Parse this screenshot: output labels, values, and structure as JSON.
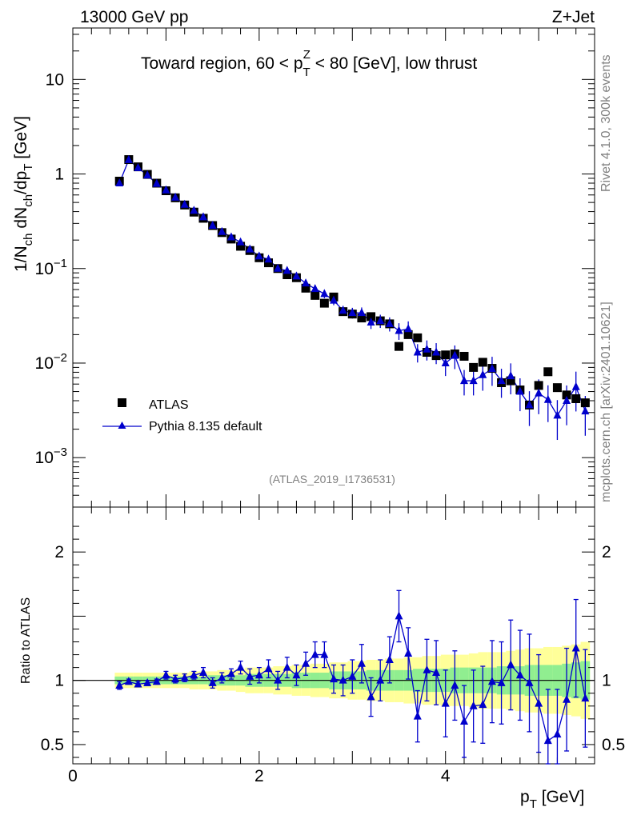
{
  "header": {
    "energy": "13000 GeV pp",
    "process": "Z+Jet",
    "title_pre": "Toward region, 60 < p",
    "title_sub": "T",
    "title_sup": "Z",
    "title_post": " < 80 [GeV], low thrust",
    "rivet": "Rivet 4.1.0,  300k events",
    "source": "mcplots.cern.ch [arXiv:2401.10621]",
    "analysis": "(ATLAS_2019_I1736531)"
  },
  "axes": {
    "y_top": {
      "l1": "1/N",
      "s1": "ch",
      "l2": " dN",
      "s2": "ch",
      "l3": "/dp",
      "s3": "T",
      "l4": " [GeV]"
    },
    "y_bottom": "Ratio to ATLAS",
    "x_main": "p",
    "x_sub": "T",
    "x_unit": " [GeV]",
    "top_ticks": [
      {
        "v": 10,
        "label": "10"
      },
      {
        "v": 1,
        "label": "1"
      },
      {
        "v": 0.1,
        "label": "10",
        "exp": "−1"
      },
      {
        "v": 0.01,
        "label": "10",
        "exp": "−2"
      },
      {
        "v": 0.001,
        "label": "10",
        "exp": "−3"
      }
    ],
    "ratio_ticks": [
      {
        "v": 2,
        "label": "2"
      },
      {
        "v": 1,
        "label": "1"
      },
      {
        "v": 0.5,
        "label": "0.5"
      }
    ],
    "x_ticks": [
      {
        "v": 0,
        "label": "0"
      },
      {
        "v": 2,
        "label": "2"
      },
      {
        "v": 4,
        "label": "4"
      }
    ]
  },
  "legend": {
    "atlas": "ATLAS",
    "pythia": "Pythia 8.135 default"
  },
  "colors": {
    "atlas": "#000000",
    "pythia": "#0000cc",
    "band_green": "#90ee90",
    "band_yellow": "#ffff99"
  },
  "chart_data": {
    "type": "scatter",
    "xlim": [
      0,
      5.6
    ],
    "ylim_top": [
      0.0003,
      35
    ],
    "ylim_ratio": [
      0.35,
      2.35
    ],
    "x": [
      0.5,
      0.6,
      0.7,
      0.8,
      0.9,
      1.0,
      1.1,
      1.2,
      1.3,
      1.4,
      1.5,
      1.6,
      1.7,
      1.8,
      1.9,
      2.0,
      2.1,
      2.2,
      2.3,
      2.4,
      2.5,
      2.6,
      2.7,
      2.8,
      2.9,
      3.0,
      3.1,
      3.2,
      3.3,
      3.4,
      3.5,
      3.6,
      3.7,
      3.8,
      3.9,
      4.0,
      4.1,
      4.2,
      4.3,
      4.4,
      4.5,
      4.6,
      4.7,
      4.8,
      4.9,
      5.0,
      5.1,
      5.2,
      5.3,
      5.4,
      5.5
    ],
    "atlas": [
      0.84,
      1.42,
      1.19,
      0.99,
      0.8,
      0.665,
      0.56,
      0.47,
      0.395,
      0.34,
      0.285,
      0.24,
      0.205,
      0.172,
      0.155,
      0.13,
      0.115,
      0.1,
      0.086,
      0.08,
      0.062,
      0.052,
      0.043,
      0.05,
      0.035,
      0.033,
      0.03,
      0.031,
      0.028,
      0.026,
      0.015,
      0.02,
      0.0185,
      0.013,
      0.012,
      0.0122,
      0.0125,
      0.0118,
      0.009,
      0.0102,
      0.0088,
      0.0062,
      0.0065,
      0.0052,
      0.0036,
      0.0058,
      0.0081,
      0.0055,
      0.0046,
      0.0042,
      0.0038
    ],
    "pythia": [
      0.8,
      1.41,
      1.16,
      0.97,
      0.79,
      0.675,
      0.565,
      0.475,
      0.41,
      0.35,
      0.285,
      0.245,
      0.215,
      0.19,
      0.16,
      0.135,
      0.125,
      0.1,
      0.095,
      0.083,
      0.07,
      0.061,
      0.054,
      0.046,
      0.036,
      0.034,
      0.034,
      0.027,
      0.028,
      0.026,
      0.022,
      0.023,
      0.013,
      0.014,
      0.013,
      0.01,
      0.012,
      0.0065,
      0.0065,
      0.0075,
      0.0087,
      0.0065,
      0.0073,
      0.005,
      0.0036,
      0.0048,
      0.0041,
      0.0028,
      0.004,
      0.0056,
      0.0031
    ],
    "pythia_err_rel": [
      0.04,
      0.03,
      0.03,
      0.03,
      0.03,
      0.03,
      0.03,
      0.03,
      0.04,
      0.04,
      0.04,
      0.05,
      0.05,
      0.05,
      0.06,
      0.06,
      0.07,
      0.07,
      0.08,
      0.08,
      0.09,
      0.1,
      0.1,
      0.11,
      0.12,
      0.13,
      0.14,
      0.15,
      0.16,
      0.17,
      0.2,
      0.2,
      0.22,
      0.24,
      0.25,
      0.27,
      0.28,
      0.3,
      0.3,
      0.32,
      0.34,
      0.34,
      0.36,
      0.38,
      0.4,
      0.4,
      0.42,
      0.45,
      0.45,
      0.45,
      0.45
    ],
    "ratio": [
      0.96,
      0.99,
      0.97,
      0.98,
      0.99,
      1.04,
      1.01,
      1.02,
      1.04,
      1.06,
      0.98,
      1.02,
      1.05,
      1.1,
      1.03,
      1.04,
      1.09,
      1.0,
      1.1,
      1.04,
      1.13,
      1.2,
      1.2,
      1.01,
      1.0,
      1.03,
      1.13,
      0.87,
      1.0,
      1.16,
      1.5,
      1.21,
      0.72,
      1.08,
      1.06,
      0.82,
      0.96,
      0.68,
      0.8,
      0.81,
      0.99,
      0.98,
      1.12,
      1.04,
      0.98,
      0.82,
      0.53,
      0.58,
      0.85,
      1.25,
      0.86
    ],
    "ratio_err": [
      0.03,
      0.02,
      0.02,
      0.02,
      0.02,
      0.03,
      0.03,
      0.03,
      0.03,
      0.04,
      0.04,
      0.04,
      0.04,
      0.05,
      0.06,
      0.06,
      0.07,
      0.07,
      0.08,
      0.08,
      0.09,
      0.1,
      0.1,
      0.11,
      0.12,
      0.13,
      0.15,
      0.15,
      0.16,
      0.18,
      0.2,
      0.2,
      0.2,
      0.24,
      0.25,
      0.26,
      0.27,
      0.28,
      0.28,
      0.3,
      0.32,
      0.32,
      0.35,
      0.35,
      0.38,
      0.38,
      0.4,
      0.35,
      0.4,
      0.38,
      0.38
    ],
    "band_inner": [
      0.03,
      0.03,
      0.03,
      0.03,
      0.03,
      0.03,
      0.03,
      0.03,
      0.03,
      0.03,
      0.04,
      0.04,
      0.04,
      0.04,
      0.05,
      0.05,
      0.05,
      0.05,
      0.05,
      0.06,
      0.06,
      0.06,
      0.06,
      0.07,
      0.07,
      0.07,
      0.07,
      0.08,
      0.08,
      0.08,
      0.08,
      0.08,
      0.09,
      0.09,
      0.09,
      0.09,
      0.1,
      0.1,
      0.1,
      0.1,
      0.1,
      0.11,
      0.11,
      0.11,
      0.12,
      0.12,
      0.12,
      0.12,
      0.13,
      0.14,
      0.15
    ],
    "band_outer": [
      0.06,
      0.06,
      0.06,
      0.06,
      0.06,
      0.06,
      0.06,
      0.06,
      0.07,
      0.07,
      0.07,
      0.08,
      0.08,
      0.09,
      0.1,
      0.1,
      0.1,
      0.11,
      0.11,
      0.12,
      0.12,
      0.13,
      0.13,
      0.14,
      0.14,
      0.15,
      0.15,
      0.16,
      0.16,
      0.17,
      0.17,
      0.18,
      0.18,
      0.19,
      0.19,
      0.2,
      0.2,
      0.2,
      0.21,
      0.22,
      0.22,
      0.22,
      0.23,
      0.24,
      0.25,
      0.25,
      0.26,
      0.26,
      0.27,
      0.28,
      0.3
    ]
  }
}
